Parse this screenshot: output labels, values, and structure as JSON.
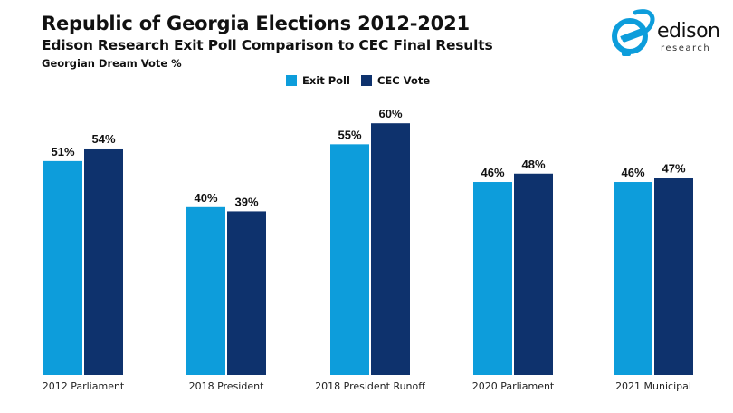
{
  "header": {
    "title": "Republic of Georgia Elections 2012-2021",
    "subtitle": "Edison Research Exit Poll Comparison to CEC Final Results",
    "measure": "Georgian Dream Vote %"
  },
  "logo": {
    "word": "edison",
    "sub": "research"
  },
  "colors": {
    "exit_poll": "#0d9ddb",
    "cec_vote": "#0e326d"
  },
  "chart_data": {
    "type": "bar",
    "title": "Republic of Georgia Elections 2012-2021",
    "subtitle": "Edison Research Exit Poll Comparison to CEC Final Results",
    "ylabel": "Georgian Dream Vote %",
    "xlabel": "",
    "categories": [
      "2012 Parliament",
      "2018 President",
      "2018 President Runoff",
      "2020 Parliament",
      "2021 Municipal"
    ],
    "series": [
      {
        "name": "Exit Poll",
        "color": "#0d9ddb",
        "values": [
          51,
          40,
          55,
          46,
          46
        ],
        "labels": [
          "51%",
          "40%",
          "55%",
          "46%",
          "46%"
        ]
      },
      {
        "name": "CEC Vote",
        "color": "#0e326d",
        "values": [
          54,
          39,
          60,
          48,
          47
        ],
        "labels": [
          "54%",
          "39%",
          "60%",
          "48%",
          "47%"
        ]
      }
    ],
    "ylim": [
      0,
      65
    ],
    "grid": false,
    "legend": "top-center"
  }
}
